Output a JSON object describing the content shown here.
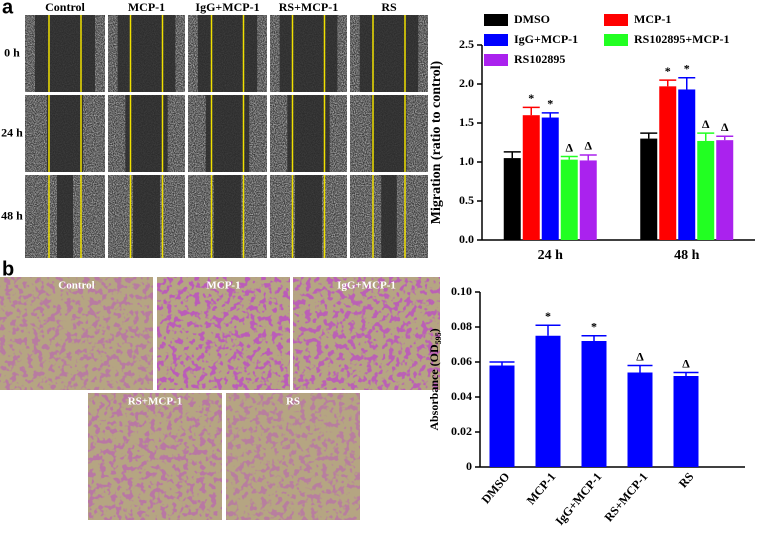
{
  "panel_labels": [
    "a",
    "b"
  ],
  "scratch_assay": {
    "columns": [
      "Control",
      "MCP-1",
      "IgG+MCP-1",
      "RS+MCP-1",
      "RS"
    ],
    "rows": [
      "0 h",
      "24 h",
      "48 h"
    ]
  },
  "transwell": {
    "labels": [
      "Control",
      "MCP-1",
      "IgG+MCP-1",
      "RS+MCP-1",
      "RS"
    ]
  },
  "chart_data": [
    {
      "type": "bar",
      "ylabel": "Migration (ratio to control)",
      "categories": [
        "24 h",
        "48 h"
      ],
      "series": [
        {
          "name": "DMSO",
          "color": "#000000",
          "values": [
            1.05,
            1.3
          ],
          "errors": [
            0.08,
            0.07
          ]
        },
        {
          "name": "MCP-1",
          "color": "#ff0000",
          "values": [
            1.6,
            1.97
          ],
          "errors": [
            0.1,
            0.08
          ],
          "markers": [
            "*",
            "*"
          ]
        },
        {
          "name": "IgG+MCP-1",
          "color": "#0000ff",
          "values": [
            1.57,
            1.93
          ],
          "errors": [
            0.06,
            0.15
          ],
          "markers": [
            "*",
            "*"
          ]
        },
        {
          "name": "RS102895+MCP-1",
          "color": "#22ff22",
          "values": [
            1.03,
            1.27
          ],
          "errors": [
            0.04,
            0.1
          ],
          "markers": [
            "Δ",
            "Δ"
          ]
        },
        {
          "name": "RS102895",
          "color": "#aa22ee",
          "values": [
            1.02,
            1.28
          ],
          "errors": [
            0.07,
            0.05
          ],
          "markers": [
            "Δ",
            "Δ"
          ]
        }
      ],
      "ylim": [
        0,
        2.5
      ],
      "yticks": [
        {
          "value": 0,
          "label": "0.0"
        },
        {
          "value": 0.5,
          "label": "0.5"
        },
        {
          "value": 1,
          "label": "1.0"
        },
        {
          "value": 1.5,
          "label": "1.5"
        },
        {
          "value": 2,
          "label": "2.0"
        },
        {
          "value": 2.5,
          "label": "2.5"
        }
      ],
      "legend": "top"
    },
    {
      "type": "bar",
      "ylabel": [
        "Absorbance (OD",
        "595",
        ")"
      ],
      "categories": [
        "DMSO",
        "MCP-1",
        "IgG+MCP-1",
        "RS+MCP-1",
        "RS"
      ],
      "values": [
        0.058,
        0.075,
        0.072,
        0.054,
        0.052
      ],
      "errors": [
        0.002,
        0.006,
        0.003,
        0.004,
        0.002
      ],
      "markers": [
        null,
        "*",
        "*",
        "Δ",
        "Δ"
      ],
      "color": "#0000ff",
      "ylim": [
        0,
        0.1
      ],
      "yticks": [
        0,
        0.02,
        0.04,
        0.06,
        0.08,
        {
          "value": 0.1,
          "label": "0.10"
        }
      ]
    }
  ]
}
